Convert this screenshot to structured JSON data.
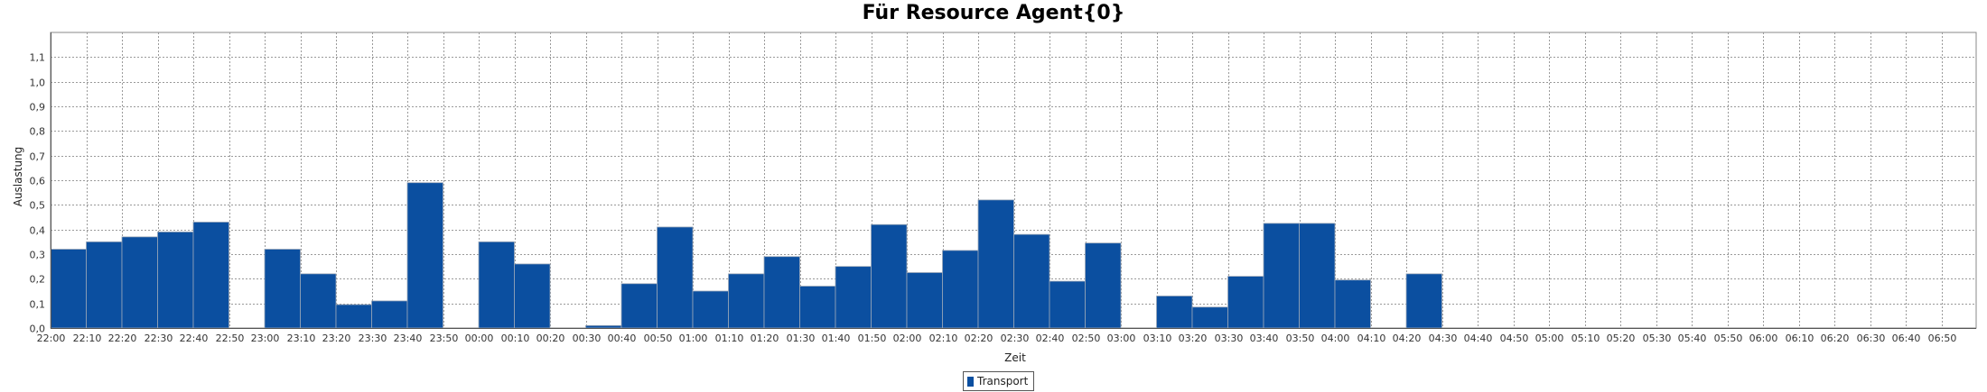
{
  "chart_data": {
    "type": "bar",
    "title": "Für Resource Agent{0}",
    "xlabel": "Zeit",
    "ylabel": "Auslastung",
    "ylim": [
      0,
      1.2
    ],
    "yticks": [
      "0,0",
      "0,1",
      "0,2",
      "0,3",
      "0,4",
      "0,5",
      "0,6",
      "0,7",
      "0,8",
      "0,9",
      "1,0",
      "1,1"
    ],
    "grid": true,
    "legend_position": "bottom-center",
    "categories": [
      "22:00",
      "22:10",
      "22:20",
      "22:30",
      "22:40",
      "22:50",
      "23:00",
      "23:10",
      "23:20",
      "23:30",
      "23:40",
      "23:50",
      "00:00",
      "00:10",
      "00:20",
      "00:30",
      "00:40",
      "00:50",
      "01:00",
      "01:10",
      "01:20",
      "01:30",
      "01:40",
      "01:50",
      "02:00",
      "02:10",
      "02:20",
      "02:30",
      "02:40",
      "02:50",
      "03:00",
      "03:10",
      "03:20",
      "03:30",
      "03:40",
      "03:50",
      "04:00",
      "04:10",
      "04:20",
      "04:30",
      "04:40",
      "04:50",
      "05:00",
      "05:10",
      "05:20",
      "05:30",
      "05:40",
      "05:50",
      "06:00",
      "06:10",
      "06:20",
      "06:30",
      "06:40",
      "06:50"
    ],
    "series": [
      {
        "name": "Transport",
        "color": "#0b4fa0",
        "values": [
          0.32,
          0.35,
          0.37,
          0.39,
          0.43,
          0,
          0.32,
          0.22,
          0.095,
          0.11,
          0.59,
          0,
          0.35,
          0.26,
          0,
          0.01,
          0.18,
          0.41,
          0.15,
          0.22,
          0.29,
          0.17,
          0.25,
          0.42,
          0.225,
          0.315,
          0.52,
          0.38,
          0.19,
          0.345,
          0,
          0.13,
          0.085,
          0.21,
          0.425,
          0.425,
          0.195,
          0,
          0.22,
          0,
          0,
          0,
          0,
          0,
          0,
          0,
          0,
          0,
          0,
          0,
          0,
          0,
          0,
          0
        ]
      }
    ]
  }
}
